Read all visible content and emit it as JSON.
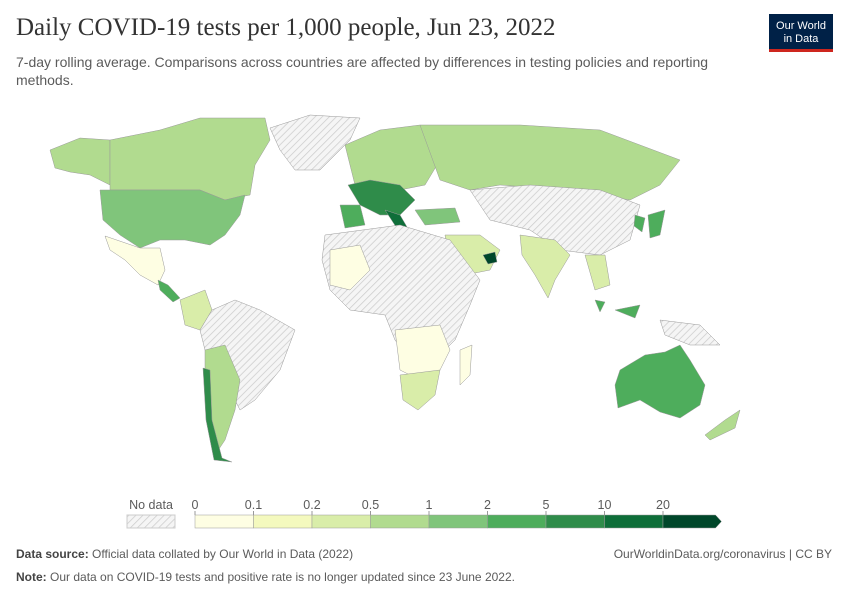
{
  "header": {
    "title": "Daily COVID-19 tests per 1,000 people, Jun 23, 2022",
    "subtitle": "7-day rolling average. Comparisons across countries are affected by differences in testing policies and reporting methods.",
    "logo": [
      "Our World",
      "in Data"
    ]
  },
  "legend": {
    "no_data_label": "No data",
    "ticks": [
      0,
      0.1,
      0.2,
      0.5,
      1,
      2,
      5,
      10,
      20
    ],
    "colors": [
      "#fefee3",
      "#f4f9be",
      "#d9eda9",
      "#b1db8f",
      "#80c57b",
      "#4ead5c",
      "#2f8c4a",
      "#0e6e39",
      "#00472a"
    ]
  },
  "footer": {
    "source": {
      "label": "Data source:",
      "text": "Official data collated by Our World in Data (2022)"
    },
    "link": "OurWorldinData.org/coronavirus | CC BY",
    "note": {
      "label": "Note:",
      "text": "Our data on COVID-19 tests and positive rate is no longer updated since 23 June 2022."
    }
  }
}
